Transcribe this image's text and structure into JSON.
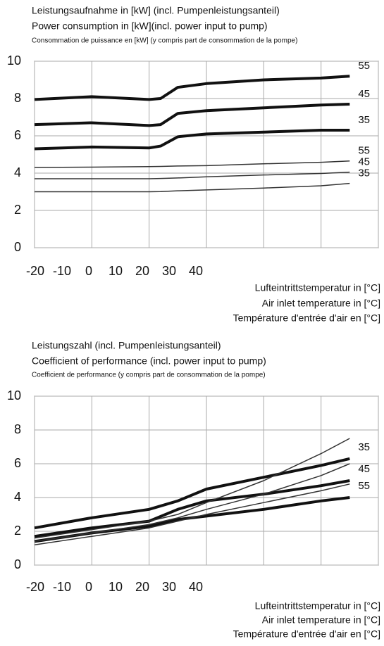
{
  "chart_data": [
    {
      "type": "line",
      "title": [
        "Leistungsaufnahme in [kW] (incl. Pumpenleistungsanteil)",
        "Power consumption in [kW](incl. power input to pump)",
        "Consommation de puissance en [kW] (y compris part de consommation de la pompe)"
      ],
      "x_label": [
        "Lufteintrittstemperatur in [°C]",
        "Air inlet temperature in [°C]",
        "Température d'entrée d'air en [°C]"
      ],
      "x": [
        -20,
        -10,
        0,
        2,
        5,
        10,
        20,
        30,
        35
      ],
      "xlim": [
        -20,
        40
      ],
      "xticks": [
        -20,
        -10,
        0,
        10,
        20,
        30,
        40
      ],
      "ylim": [
        0,
        10
      ],
      "yticks": [
        0,
        2,
        4,
        6,
        8,
        10
      ],
      "grid": true,
      "series": [
        {
          "name": "55",
          "color": "#111111",
          "width": "thick",
          "values": [
            7.95,
            8.1,
            7.95,
            8.0,
            8.6,
            8.8,
            9.0,
            9.1,
            9.2
          ]
        },
        {
          "name": "45",
          "color": "#111111",
          "width": "thick",
          "values": [
            6.6,
            6.7,
            6.55,
            6.6,
            7.2,
            7.35,
            7.5,
            7.65,
            7.7
          ]
        },
        {
          "name": "35",
          "color": "#111111",
          "width": "thick",
          "values": [
            5.3,
            5.4,
            5.35,
            5.45,
            5.95,
            6.1,
            6.2,
            6.3,
            6.3
          ]
        },
        {
          "name": "55",
          "color": "#333333",
          "width": "thin",
          "values": [
            4.3,
            4.32,
            4.35,
            4.36,
            4.38,
            4.4,
            4.5,
            4.58,
            4.65
          ]
        },
        {
          "name": "45",
          "color": "#333333",
          "width": "thin",
          "values": [
            3.7,
            3.7,
            3.7,
            3.71,
            3.74,
            3.8,
            3.9,
            3.98,
            4.05
          ]
        },
        {
          "name": "35",
          "color": "#333333",
          "width": "thin",
          "values": [
            3.0,
            3.0,
            3.0,
            3.01,
            3.05,
            3.1,
            3.2,
            3.32,
            3.45
          ]
        }
      ]
    },
    {
      "type": "line",
      "title": [
        "Leistungszahl (incl. Pumpenleistungsanteil)",
        "Coefficient of performance (incl. power input to pump)",
        "Coefficient de performance (y compris part de consommation de la pompe)"
      ],
      "x_label": [
        "Lufteintrittstemperatur in [°C]",
        "Air inlet temperature in [°C]",
        "Température d'entrée d'air en [°C]"
      ],
      "x": [
        -20,
        -10,
        0,
        5,
        10,
        20,
        30,
        35
      ],
      "xlim": [
        -20,
        40
      ],
      "xticks": [
        -20,
        -10,
        0,
        10,
        20,
        30,
        40
      ],
      "ylim": [
        0,
        10
      ],
      "yticks": [
        0,
        2,
        4,
        6,
        8,
        10
      ],
      "grid": true,
      "series": [
        {
          "name": "35",
          "color": "#111111",
          "width": "thick",
          "values": [
            2.2,
            2.8,
            3.3,
            3.8,
            4.5,
            5.2,
            5.9,
            6.3
          ]
        },
        {
          "name": "45",
          "color": "#111111",
          "width": "thick",
          "values": [
            1.7,
            2.2,
            2.6,
            3.3,
            3.8,
            4.2,
            4.7,
            5.0
          ]
        },
        {
          "name": "55",
          "color": "#111111",
          "width": "thick",
          "values": [
            1.4,
            1.9,
            2.3,
            2.7,
            2.9,
            3.3,
            3.8,
            4.0
          ]
        },
        {
          "color": "#333333",
          "width": "thin",
          "values": [
            1.6,
            2.1,
            2.6,
            3.0,
            3.7,
            5.0,
            6.6,
            7.5
          ]
        },
        {
          "color": "#333333",
          "width": "thin",
          "values": [
            1.4,
            1.9,
            2.4,
            2.8,
            3.3,
            4.2,
            5.3,
            6.0
          ]
        },
        {
          "color": "#333333",
          "width": "thin",
          "values": [
            1.2,
            1.7,
            2.2,
            2.6,
            3.0,
            3.7,
            4.4,
            4.8
          ]
        }
      ]
    }
  ]
}
